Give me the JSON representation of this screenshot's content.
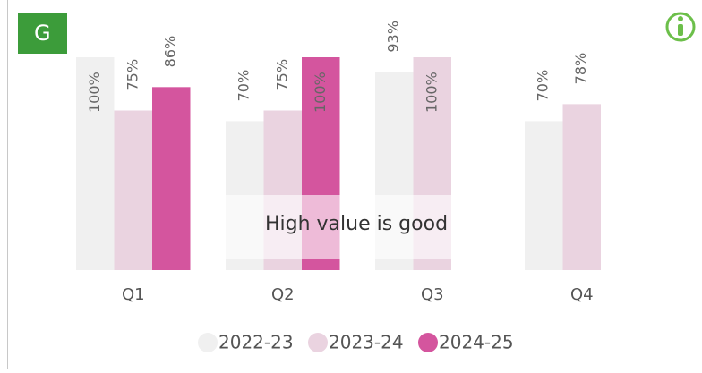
{
  "badge": "G",
  "chart_data": {
    "type": "bar",
    "annotation": "High value is good",
    "categories": [
      "Q1",
      "Q2",
      "Q3",
      "Q4"
    ],
    "ylim": [
      0,
      100
    ],
    "legend": "bottom",
    "series": [
      {
        "name": "2022-23",
        "color": "#f0f0f0",
        "values": [
          100,
          70,
          93,
          70
        ],
        "value_labels": [
          "100%",
          "70%",
          "93%",
          "70%"
        ]
      },
      {
        "name": "2023-24",
        "color": "#ead3e0",
        "values": [
          75,
          75,
          100,
          78
        ],
        "value_labels": [
          "75%",
          "75%",
          "100%",
          "78%"
        ]
      },
      {
        "name": "2024-25",
        "color": "#d4559e",
        "values": [
          86,
          100,
          null,
          null
        ],
        "value_labels": [
          "86%",
          "100%",
          null,
          null
        ]
      }
    ]
  }
}
